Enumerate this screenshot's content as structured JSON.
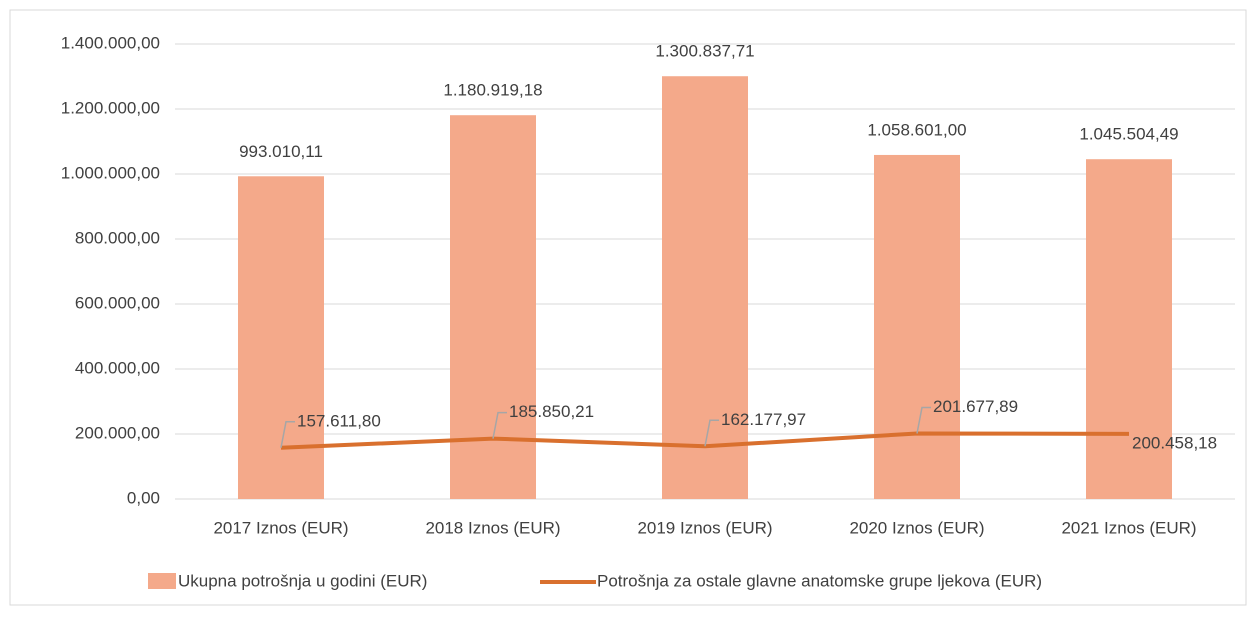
{
  "chart_data": {
    "type": "bar",
    "categories": [
      "2017 Iznos (EUR)",
      "2018 Iznos (EUR)",
      "2019 Iznos (EUR)",
      "2020 Iznos (EUR)",
      "2021 Iznos (EUR)"
    ],
    "series": [
      {
        "name": "Ukupna potrošnja u godini (EUR)",
        "type": "bar",
        "color": "#f4a98a",
        "values": [
          993010.11,
          1180919.18,
          1300837.71,
          1058601.0,
          1045504.49
        ],
        "value_labels": [
          "993.010,11",
          "1.180.919,18",
          "1.300.837,71",
          "1.058.601,00",
          "1.045.504,49"
        ]
      },
      {
        "name": "Potrošnja za ostale glavne anatomske grupe ljekova (EUR)",
        "type": "line",
        "color": "#d9702e",
        "values": [
          157611.8,
          185850.21,
          162177.97,
          201677.89,
          200458.18
        ],
        "value_labels": [
          "157.611,80",
          "185.850,21",
          "162.177,97",
          "201.677,89",
          "200.458,18"
        ]
      }
    ],
    "ylim": [
      0,
      1400000
    ],
    "yticks": [
      {
        "value": 0,
        "label": "0,00"
      },
      {
        "value": 200000,
        "label": "200.000,00"
      },
      {
        "value": 400000,
        "label": "400.000,00"
      },
      {
        "value": 600000,
        "label": "600.000,00"
      },
      {
        "value": 800000,
        "label": "800.000,00"
      },
      {
        "value": 1000000,
        "label": "1.000.000,00"
      },
      {
        "value": 1200000,
        "label": "1.200.000,00"
      },
      {
        "value": 1400000,
        "label": "1.400.000,00"
      }
    ],
    "grid": true,
    "legend": "bottom"
  }
}
